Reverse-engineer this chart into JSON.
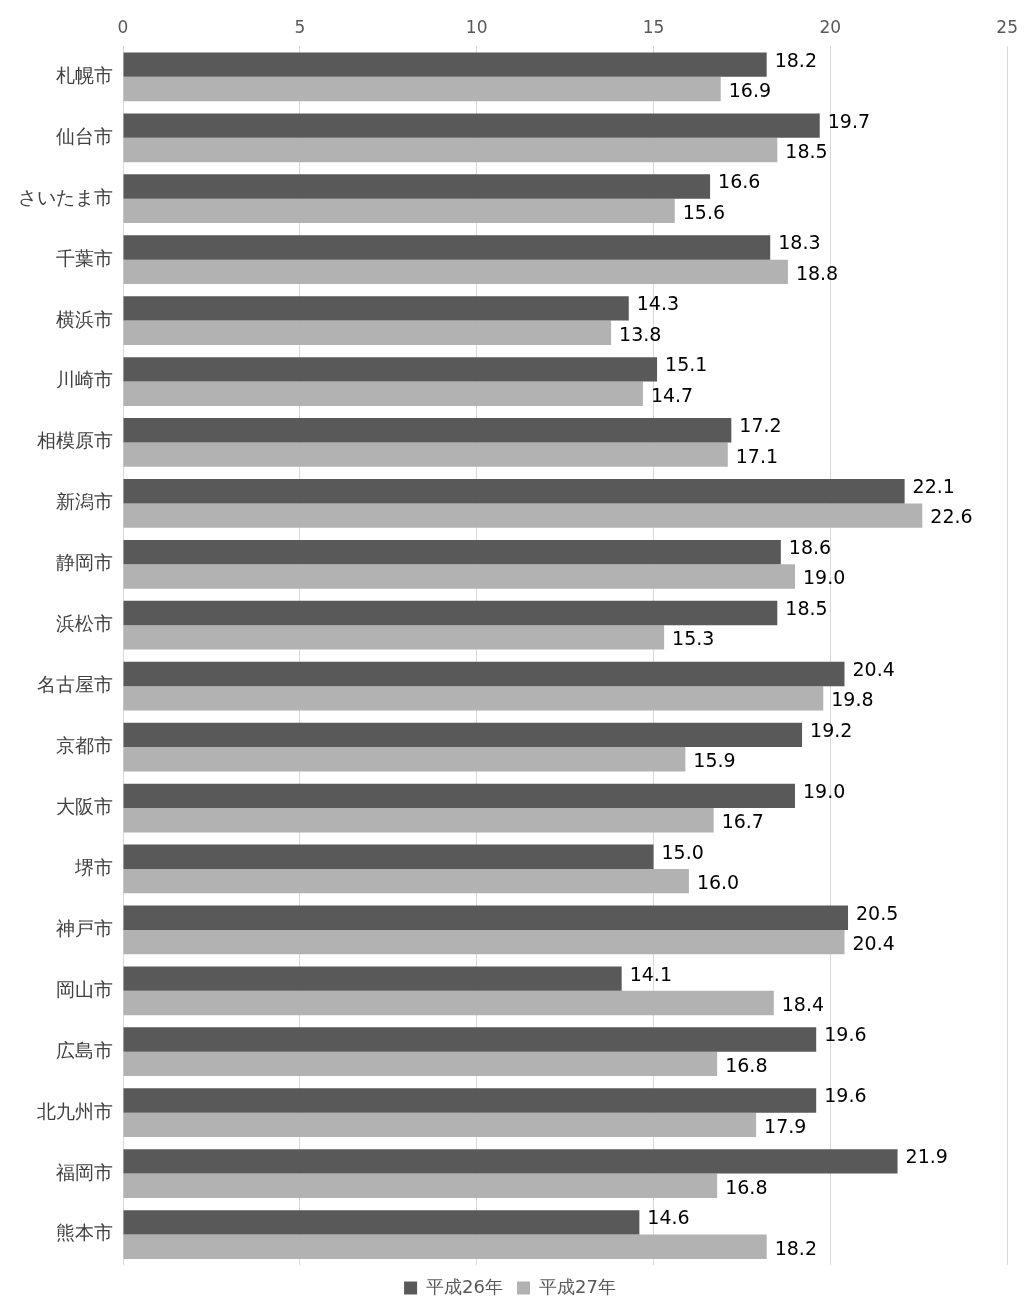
{
  "chart_data": {
    "type": "bar",
    "orientation": "horizontal",
    "categories": [
      "札幌市",
      "仙台市",
      "さいたま市",
      "千葉市",
      "横浜市",
      "川崎市",
      "相模原市",
      "新潟市",
      "静岡市",
      "浜松市",
      "名古屋市",
      "京都市",
      "大阪市",
      "堺市",
      "神戸市",
      "岡山市",
      "広島市",
      "北九州市",
      "福岡市",
      "熊本市"
    ],
    "series": [
      {
        "name": "平成26年",
        "color": "#595959",
        "values": [
          18.2,
          19.7,
          16.6,
          18.3,
          14.3,
          15.1,
          17.2,
          22.1,
          18.6,
          18.5,
          20.4,
          19.2,
          19.0,
          15.0,
          20.5,
          14.1,
          19.6,
          19.6,
          21.9,
          14.6
        ],
        "value_labels": [
          "18.2",
          "19.7",
          "16.6",
          "18.3",
          "14.3",
          "15.1",
          "17.2",
          "22.1",
          "18.6",
          "18.5",
          "20.4",
          "19.2",
          "19.0",
          "15.0",
          "20.5",
          "14.1",
          "19.6",
          "19.6",
          "21.9",
          "14.6"
        ]
      },
      {
        "name": "平成27年",
        "color": "#b2b2b2",
        "values": [
          16.9,
          18.5,
          15.6,
          18.8,
          13.8,
          14.7,
          17.1,
          22.6,
          19.0,
          15.3,
          19.8,
          15.9,
          16.7,
          16.0,
          20.4,
          18.4,
          16.8,
          17.9,
          16.8,
          18.2
        ],
        "value_labels": [
          "16.9",
          "18.5",
          "15.6",
          "18.8",
          "13.8",
          "14.7",
          "17.1",
          "22.6",
          "19.0",
          "15.3",
          "19.8",
          "15.9",
          "16.7",
          "16.0",
          "20.4",
          "18.4",
          "16.8",
          "17.9",
          "16.8",
          "18.2"
        ]
      }
    ],
    "xlim": [
      0,
      25
    ],
    "xticks": [
      0,
      5,
      10,
      15,
      20,
      25
    ],
    "grid": "x",
    "legend": "bottom"
  }
}
